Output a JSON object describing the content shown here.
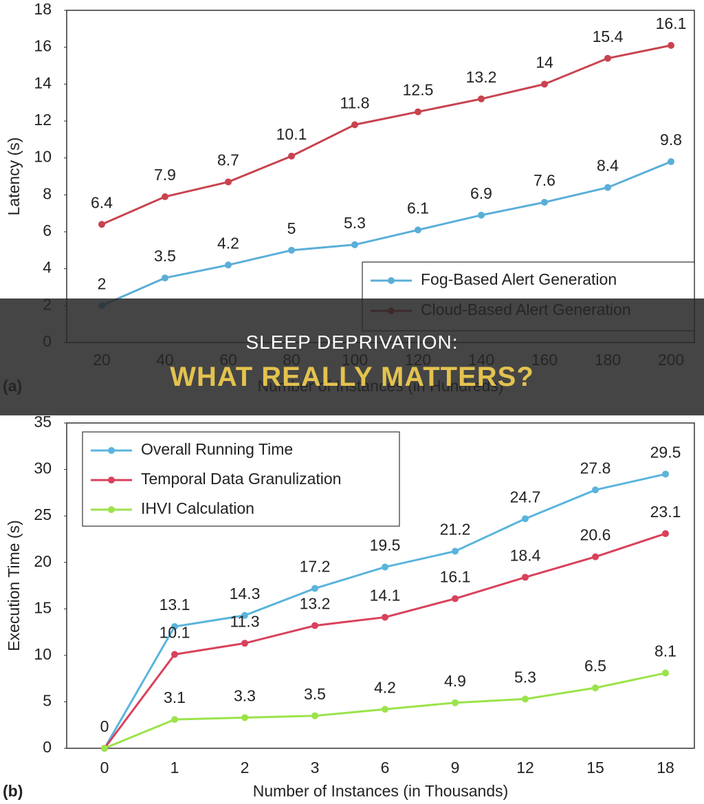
{
  "chart_data": [
    {
      "type": "line",
      "panel_label": "(a)",
      "x_label": "Number of Instances (in Hundreds)",
      "y_label": "Latency (s)",
      "categories": [
        "20",
        "40",
        "60",
        "80",
        "100",
        "120",
        "140",
        "160",
        "180",
        "200"
      ],
      "ylim": [
        0,
        18
      ],
      "yticks": [
        0,
        2,
        4,
        6,
        8,
        10,
        12,
        14,
        16,
        18
      ],
      "grid": false,
      "legend": "lower right",
      "series": [
        {
          "name": "Fog-Based Alert Generation",
          "color": "#5aaed8",
          "values": [
            2,
            3.5,
            4.2,
            5,
            5.3,
            6.1,
            6.9,
            7.6,
            8.4,
            9.8
          ]
        },
        {
          "name": "Cloud-Based Alert Generation",
          "color": "#c8434f",
          "values": [
            6.4,
            7.9,
            8.7,
            10.1,
            11.8,
            12.5,
            13.2,
            14,
            15.4,
            16.1
          ]
        }
      ]
    },
    {
      "type": "line",
      "panel_label": "(b)",
      "x_label": "Number of Instances (in Thousands)",
      "y_label": "Execution Time (s)",
      "categories": [
        "0",
        "1",
        "2",
        "3",
        "6",
        "9",
        "12",
        "15",
        "18"
      ],
      "ylim": [
        0,
        35
      ],
      "yticks": [
        0,
        5,
        10,
        15,
        20,
        25,
        30,
        35
      ],
      "grid": false,
      "legend": "upper left",
      "series": [
        {
          "name": "Overall Running Time",
          "color": "#5ab4dc",
          "values": [
            0,
            13.1,
            14.3,
            17.2,
            19.5,
            21.2,
            24.7,
            27.8,
            29.5
          ],
          "value_labels": [
            null,
            "13.1",
            "14.3",
            "17.2",
            "19.5",
            "21.2",
            "24.7",
            "27.8",
            "29.5"
          ]
        },
        {
          "name": "Temporal Data Granulization",
          "color": "#d9415b",
          "values": [
            0,
            10.1,
            11.3,
            13.2,
            14.1,
            16.1,
            18.4,
            20.6,
            23.1
          ],
          "value_labels": [
            null,
            "10.1",
            "11.3",
            "13.2",
            "14.1",
            "16.1",
            "18.4",
            "20.6",
            "23.1"
          ]
        },
        {
          "name": "IHVI Calculation",
          "color": "#9be34a",
          "values": [
            0,
            3.1,
            3.3,
            3.5,
            4.2,
            4.9,
            5.3,
            6.5,
            8.1
          ]
        }
      ]
    }
  ],
  "banner": {
    "title": "SLEEP DEPRIVATION:",
    "subtitle": "WHAT REALLY MATTERS?"
  }
}
